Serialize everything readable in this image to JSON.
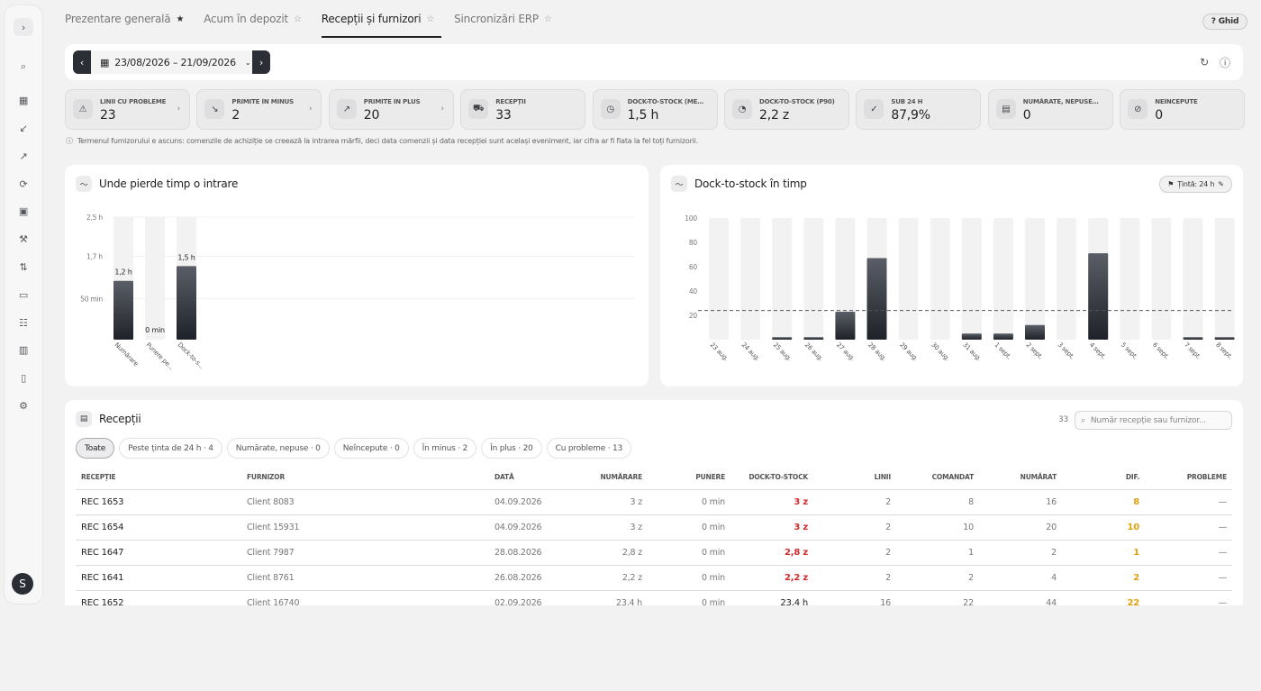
{
  "tabs": [
    {
      "label": "Prezentare generală",
      "star": "filled"
    },
    {
      "label": "Acum în depozit",
      "star": "outline"
    },
    {
      "label": "Recepții și furnizori",
      "star": "outline",
      "active": true
    },
    {
      "label": "Sincronizări ERP",
      "star": "outline"
    }
  ],
  "help": {
    "label": "Ghid"
  },
  "daterange": {
    "value": "23/08/2026 – 21/09/2026"
  },
  "sidebar": {
    "avatar": "S",
    "icons": [
      "search-icon",
      "dashboard-icon",
      "inbound-icon",
      "outbound-icon",
      "sync-icon",
      "clipboard-icon",
      "forklift-icon",
      "transfer-icon",
      "cash-icon",
      "users-icon",
      "book-icon",
      "document-icon",
      "gear-icon"
    ]
  },
  "kpis": [
    {
      "label": "LINII CU PROBLEME",
      "value": "23",
      "icon": "⚠",
      "chev": true
    },
    {
      "label": "PRIMITE ÎN MINUS",
      "value": "2",
      "icon": "↘",
      "chev": true
    },
    {
      "label": "PRIMITE ÎN PLUS",
      "value": "20",
      "icon": "↗",
      "chev": true
    },
    {
      "label": "RECEPȚII",
      "value": "33",
      "icon": "⛟",
      "chev": false
    },
    {
      "label": "DOCK-TO-STOCK (MEDIAN)",
      "value": "1,5 h",
      "icon": "◷",
      "chev": false
    },
    {
      "label": "DOCK-TO-STOCK (P90)",
      "value": "2,2 z",
      "icon": "◔",
      "chev": false
    },
    {
      "label": "SUB 24 H",
      "value": "87,9%",
      "icon": "✓",
      "chev": false
    },
    {
      "label": "NUMĂRATE, NEPUSE PE RAFT",
      "value": "0",
      "icon": "▤",
      "chev": false
    },
    {
      "label": "NEÎNCEPUTE",
      "value": "0",
      "icon": "⊘",
      "chev": false
    }
  ],
  "note": "Termenul furnizorului e ascuns: comenzile de achiziție se creează la intrarea mărfii, deci data comenzii și data recepției sunt același eveniment, iar cifra ar fi fiata la fel toți furnizorii.",
  "stage_card": {
    "title": "Unde pierde timp o intrare"
  },
  "trend_card": {
    "title": "Dock-to-stock în timp",
    "target": "Țintă: 24 h"
  },
  "chart_data": [
    {
      "type": "bar",
      "categories": [
        "Numărare",
        "Punere pe...",
        "Dock-to-s..."
      ],
      "values": [
        1.2,
        0,
        1.5
      ],
      "data_labels": [
        "1,2 h",
        "0 min",
        "1,5 h"
      ],
      "yticks": [
        "50 min",
        "1,7 h",
        "2,5 h"
      ],
      "ylim": [
        0,
        2.5
      ],
      "unit": "h"
    },
    {
      "type": "bar",
      "categories": [
        "23 aug.",
        "24 aug.",
        "25 aug.",
        "26 aug.",
        "27 aug.",
        "28 aug.",
        "29 aug.",
        "30 aug.",
        "31 aug.",
        "1 sept.",
        "2 sept.",
        "3 sept.",
        "4 sept.",
        "5 sept.",
        "6 sept.",
        "7 sept.",
        "8 sept."
      ],
      "values": [
        0,
        0,
        2,
        2,
        23,
        67,
        0,
        0,
        5,
        5,
        12,
        0,
        71,
        0,
        0,
        2,
        2
      ],
      "yticks": [
        20,
        40,
        60,
        80,
        100
      ],
      "ylim": [
        0,
        100
      ],
      "target": 24,
      "unit": "h"
    }
  ],
  "receipts": {
    "title": "Recepții",
    "count": "33",
    "search_placeholder": "Număr recepție sau furnizor...",
    "chips": [
      "Toate",
      "Peste ținta de 24 h · 4",
      "Numărate, nepuse · 0",
      "Neîncepute · 0",
      "În minus · 2",
      "În plus · 20",
      "Cu probleme · 13"
    ],
    "columns": [
      "RECEPȚIE",
      "FURNIZOR",
      "DATĂ",
      "NUMĂRARE",
      "PUNERE",
      "DOCK-TO-STOCK",
      "LINII",
      "COMANDAT",
      "NUMĂRAT",
      "DIF.",
      "PROBLEME"
    ],
    "rows": [
      [
        "REC 1653",
        "Client 8083",
        "04.09.2026",
        "3 z",
        "0 min",
        "3 z",
        "2",
        "8",
        "16",
        "8",
        "—"
      ],
      [
        "REC 1654",
        "Client 15931",
        "04.09.2026",
        "3 z",
        "0 min",
        "3 z",
        "2",
        "10",
        "20",
        "10",
        "—"
      ],
      [
        "REC 1647",
        "Client 7987",
        "28.08.2026",
        "2,8 z",
        "0 min",
        "2,8 z",
        "2",
        "1",
        "2",
        "1",
        "—"
      ],
      [
        "REC 1641",
        "Client 8761",
        "26.08.2026",
        "2,2 z",
        "0 min",
        "2,2 z",
        "2",
        "2",
        "4",
        "2",
        "—"
      ],
      [
        "REC 1652",
        "Client 16740",
        "02.09.2026",
        "23,4 h",
        "0 min",
        "23,4 h",
        "16",
        "22",
        "44",
        "22",
        "—"
      ]
    ],
    "dts_colors": [
      "red",
      "red",
      "red",
      "red",
      "plain"
    ]
  }
}
